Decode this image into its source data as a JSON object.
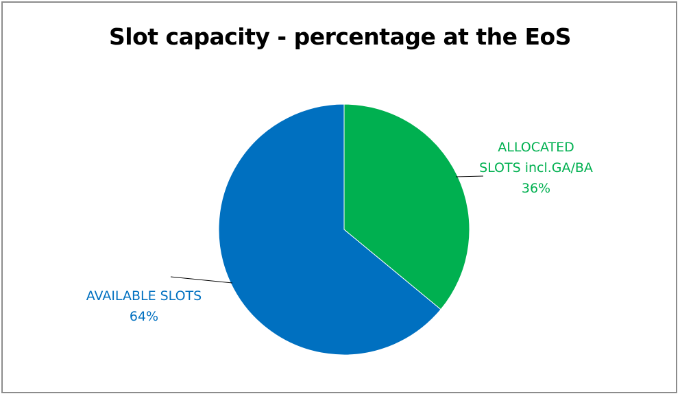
{
  "chart_data": {
    "type": "pie",
    "title": "Slot capacity - percentage at the EoS",
    "slices": [
      {
        "label_lines": [
          "ALLOCATED",
          "SLOTS incl.GA/BA"
        ],
        "value": 36,
        "value_label": "36%",
        "color": "#00B050"
      },
      {
        "label_lines": [
          "AVAILABLE SLOTS"
        ],
        "value": 64,
        "value_label": "64%",
        "color": "#0070C0"
      }
    ],
    "start": "12 o'clock",
    "direction": "clockwise",
    "legend": "none",
    "data_labels": "outside with leader lines"
  }
}
